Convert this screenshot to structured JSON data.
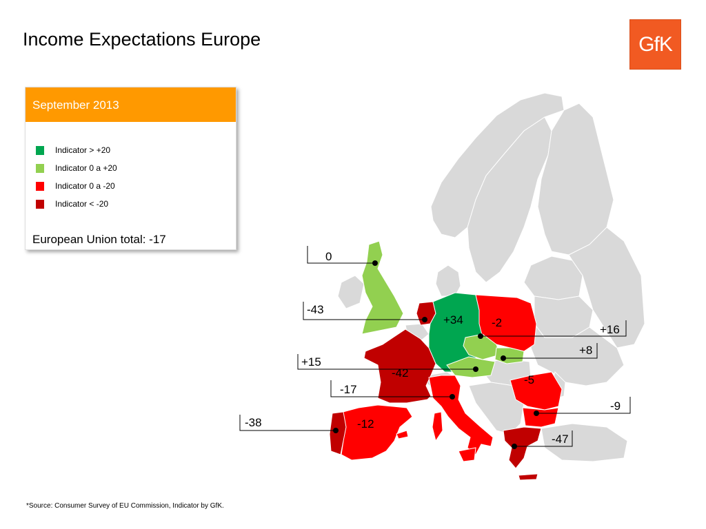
{
  "title": "Income Expectations Europe",
  "logo_text": "GfK",
  "legend": {
    "header": "September 2013",
    "items": [
      {
        "label": "Indicator > +20",
        "color": "#00a650"
      },
      {
        "label": "Indicator 0 a +20",
        "color": "#92d050"
      },
      {
        "label": "Indicator 0 a -20",
        "color": "#ff0000"
      },
      {
        "label": "Indicator < -20",
        "color": "#c00000"
      }
    ],
    "eu_total": "European Union total:  -17"
  },
  "colors": {
    "strong_positive": "#00a650",
    "positive": "#92d050",
    "negative": "#ff0000",
    "strong_negative": "#c00000",
    "other": "#d9d9d9",
    "header": "#ff9900",
    "logo": "#f15a22"
  },
  "countries": {
    "uk": {
      "value": "0"
    },
    "netherlands": {
      "value": "-43"
    },
    "germany": {
      "value": "+34"
    },
    "poland": {
      "value": "-2"
    },
    "czech_republic": {
      "value": "+16"
    },
    "slovakia": {
      "value": "+8"
    },
    "austria": {
      "value": "+15"
    },
    "france": {
      "value": "-42"
    },
    "italy": {
      "value": "-17"
    },
    "romania": {
      "value": "-5"
    },
    "bulgaria": {
      "value": "-9"
    },
    "portugal": {
      "value": "-38"
    },
    "spain": {
      "value": "-12"
    },
    "greece": {
      "value": "-47"
    }
  },
  "source": "*Source: Consumer Survey of EU Commission, Indicator by GfK."
}
